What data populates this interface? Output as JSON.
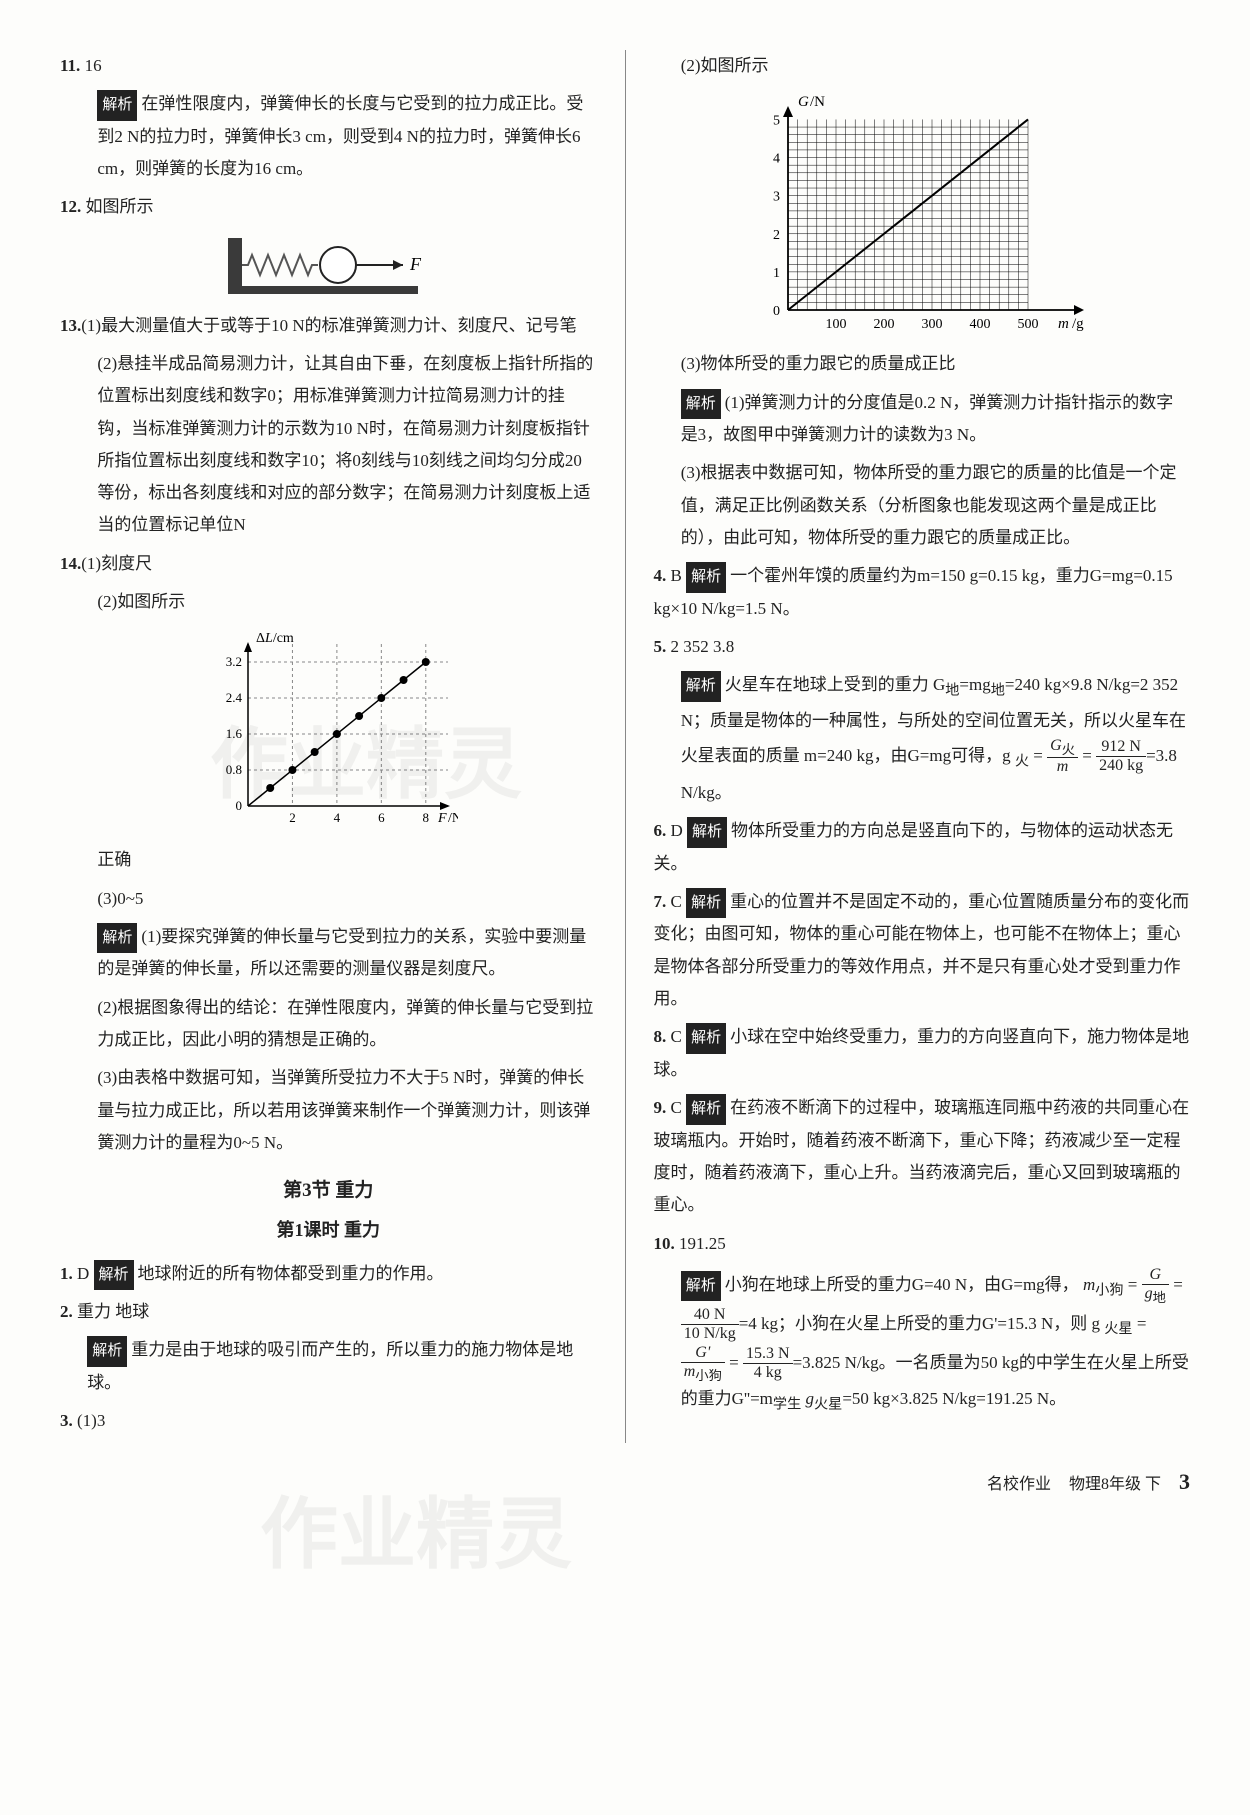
{
  "left": {
    "q11": {
      "num": "11.",
      "ans": "16",
      "analysis": "在弹性限度内，弹簧伸长的长度与它受到的拉力成正比。受到2 N的拉力时，弹簧伸长3 cm，则受到4 N的拉力时，弹簧伸长6 cm，则弹簧的长度为16 cm。"
    },
    "q12": {
      "num": "12.",
      "text": "如图所示"
    },
    "q13": {
      "num": "13.",
      "p1": "(1)最大测量值大于或等于10 N的标准弹簧测力计、刻度尺、记号笔",
      "p2": "(2)悬挂半成品简易测力计，让其自由下垂，在刻度板上指针所指的位置标出刻度线和数字0；用标准弹簧测力计拉简易测力计的挂钩，当标准弹簧测力计的示数为10 N时，在简易测力计刻度板指针所指位置标出刻度线和数字10；将0刻线与10刻线之间均匀分成20等份，标出各刻度线和对应的部分数字；在简易测力计刻度板上适当的位置标记单位N"
    },
    "q14": {
      "num": "14.",
      "p1": "(1)刻度尺",
      "p2": "(2)如图所示",
      "chart": {
        "type": "scatter-line",
        "xlabel": "F/N",
        "ylabel": "ΔL/cm",
        "xlim": [
          0,
          9
        ],
        "ylim": [
          0,
          3.6
        ],
        "xticks": [
          2,
          4,
          6,
          8
        ],
        "yticks": [
          0,
          0.8,
          1.6,
          2.4,
          3.2
        ],
        "points_x": [
          1,
          2,
          3,
          4,
          5,
          6,
          7,
          8
        ],
        "points_y": [
          0.4,
          0.8,
          1.2,
          1.6,
          2.0,
          2.4,
          2.8,
          3.2
        ],
        "point_color": "#000000",
        "line_color": "#000000",
        "grid_color": "#888888",
        "bg": "#ffffff",
        "marker": "circle",
        "marker_size": 4,
        "grid_dash": "3,3"
      },
      "p3": "正确",
      "p4": "(3)0~5",
      "analysis1": "(1)要探究弹簧的伸长量与它受到拉力的关系，实验中要测量的是弹簧的伸长量，所以还需要的测量仪器是刻度尺。",
      "analysis2": "(2)根据图象得出的结论：在弹性限度内，弹簧的伸长量与它受到拉力成正比，因此小明的猜想是正确的。",
      "analysis3": "(3)由表格中数据可知，当弹簧所受拉力不大于5 N时，弹簧的伸长量与拉力成正比，所以若用该弹簧来制作一个弹簧测力计，则该弹簧测力计的量程为0~5 N。"
    },
    "section": "第3节  重力",
    "lesson": "第1课时  重力",
    "s_q1": {
      "num": "1.",
      "ans": "D",
      "analysis": "地球附近的所有物体都受到重力的作用。"
    },
    "s_q2": {
      "num": "2.",
      "ans": "重力  地球",
      "analysis": "重力是由于地球的吸引而产生的，所以重力的施力物体是地球。"
    },
    "s_q3": {
      "num": "3.",
      "p1": "(1)3"
    }
  },
  "right": {
    "q3_p2": "(2)如图所示",
    "chart": {
      "type": "line",
      "xlabel": "m/g",
      "ylabel": "G/N",
      "xlim": [
        0,
        550
      ],
      "ylim": [
        0,
        5.3
      ],
      "xticks": [
        100,
        200,
        300,
        400,
        500
      ],
      "yticks": [
        0,
        1,
        2,
        3,
        4,
        5
      ],
      "line_start": [
        0,
        0
      ],
      "line_end": [
        500,
        5
      ],
      "line_color": "#000000",
      "grid_color": "#000000",
      "bg": "#ffffff",
      "axis_fontsize": 14
    },
    "q3_p3": "(3)物体所受的重力跟它的质量成正比",
    "q3_analysis1": "(1)弹簧测力计的分度值是0.2 N，弹簧测力计指针指示的数字是3，故图甲中弹簧测力计的读数为3 N。",
    "q3_analysis3": "(3)根据表中数据可知，物体所受的重力跟它的质量的比值是一个定值，满足正比例函数关系（分析图象也能发现这两个量是成正比的），由此可知，物体所受的重力跟它的质量成正比。",
    "q4": {
      "num": "4.",
      "ans": "B",
      "analysis": "一个霍州年馍的质量约为m=150 g=0.15 kg，重力G=mg=0.15 kg×10 N/kg=1.5 N。"
    },
    "q5": {
      "num": "5.",
      "ans": "2 352  3.8",
      "analysis_pre": "火星车在地球上受到的重力 G",
      "analysis_mid": "=mg",
      "analysis_post": "=240 kg×9.8 N/kg=2 352 N；质量是物体的一种属性，与所处的空间位置无关，所以火星车在火星表面的质量 m=240 kg，由G=mg可得，g",
      "frac_top": "912 N",
      "frac_bot": "240 kg",
      "analysis_tail": "=3.8 N/kg。"
    },
    "q6": {
      "num": "6.",
      "ans": "D",
      "analysis": "物体所受重力的方向总是竖直向下的，与物体的运动状态无关。"
    },
    "q7": {
      "num": "7.",
      "ans": "C",
      "analysis": "重心的位置并不是固定不动的，重心位置随质量分布的变化而变化；由图可知，物体的重心可能在物体上，也可能不在物体上；重心是物体各部分所受重力的等效作用点，并不是只有重心处才受到重力作用。"
    },
    "q8": {
      "num": "8.",
      "ans": "C",
      "analysis": "小球在空中始终受重力，重力的方向竖直向下，施力物体是地球。"
    },
    "q9": {
      "num": "9.",
      "ans": "C",
      "analysis": "在药液不断滴下的过程中，玻璃瓶连同瓶中药液的共同重心在玻璃瓶内。开始时，随着药液不断滴下，重心下降；药液减少至一定程度时，随着药液滴下，重心上升。当药液滴完后，重心又回到玻璃瓶的重心。"
    },
    "q10": {
      "num": "10.",
      "ans": "191.25",
      "a_pre": "小狗在地球上所受的重力G=40 N，由G=mg得，",
      "frac1_top": "40 N",
      "frac1_bot": "10 N/kg",
      "a_mid": "=4 kg；小狗在火星上所受的重力G'=15.3 N，则 g",
      "frac2_top": "15.3 N",
      "frac2_bot": "4 kg",
      "a_tail": "=3.825 N/kg。一名质量为50 kg的中学生在火星上所受的重力G''=m",
      "a_final": "=50 kg×3.825 N/kg=191.25 N。"
    }
  },
  "spring_diagram": {
    "wall_color": "#3a3a3a",
    "spring_color": "#555555",
    "ball_stroke": "#222222",
    "arrow_color": "#222222",
    "force_label": "F"
  },
  "footer": {
    "brand": "名校作业",
    "book": "物理8年级 下",
    "page": "3"
  },
  "watermark": "作业精灵"
}
